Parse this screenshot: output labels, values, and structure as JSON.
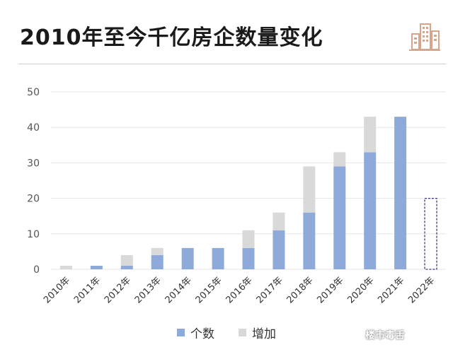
{
  "header": {
    "title": "2010年至今千亿房企数量变化"
  },
  "colors": {
    "count": "#8eaadb",
    "increase": "#d9d9d9",
    "projected_border": "#3a3a7a",
    "logo": "#d7a58c"
  },
  "watermark": {
    "text": "楼市毒舌"
  },
  "icons": {
    "logo": "buildings-icon"
  },
  "chart_data": {
    "type": "bar",
    "stacked": true,
    "categories": [
      "2010年",
      "2011年",
      "2012年",
      "2013年",
      "2014年",
      "2015年",
      "2016年",
      "2017年",
      "2018年",
      "2019年",
      "2020年",
      "2021年",
      "2022年"
    ],
    "series": [
      {
        "name": "个数",
        "values": [
          0,
          1,
          1,
          4,
          6,
          6,
          6,
          11,
          16,
          29,
          33,
          43,
          null
        ]
      },
      {
        "name": "增加",
        "values": [
          1,
          0,
          3,
          2,
          0,
          0,
          5,
          5,
          13,
          4,
          10,
          0,
          null
        ]
      }
    ],
    "projected": {
      "category": "2022年",
      "value": 20,
      "style": "dashed-outline"
    },
    "ylim": [
      0,
      50
    ],
    "yticks": [
      0,
      10,
      20,
      30,
      40,
      50
    ],
    "grid": true,
    "legend_placement": "bottom"
  }
}
